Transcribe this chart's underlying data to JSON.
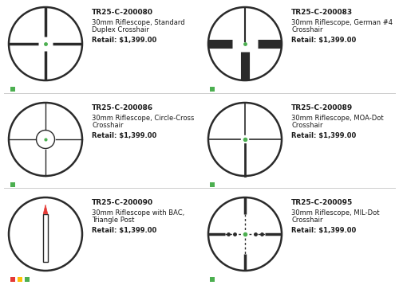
{
  "bg_color": "#ffffff",
  "text_color": "#1a1a1a",
  "scope_color": "#2a2a2a",
  "green_color": "#4CAF50",
  "red_color": "#e53935",
  "yellow_color": "#FFC107",
  "items": [
    {
      "id": "TR25-C-200080",
      "desc1": "30mm Riflescope, Standard",
      "desc2": "Duplex Crosshair",
      "price": "Retail: $1,399.00",
      "type": "duplex",
      "col": 0,
      "row": 0,
      "dots": [
        "green"
      ]
    },
    {
      "id": "TR25-C-200083",
      "desc1": "30mm Riflescope, German #4",
      "desc2": "Crosshair",
      "price": "Retail: $1,399.00",
      "type": "german4",
      "col": 1,
      "row": 0,
      "dots": [
        "green"
      ]
    },
    {
      "id": "TR25-C-200086",
      "desc1": "30mm Riflescope, Circle-Cross",
      "desc2": "Crosshair",
      "price": "Retail: $1,399.00",
      "type": "circlecross",
      "col": 0,
      "row": 1,
      "dots": [
        "green"
      ]
    },
    {
      "id": "TR25-C-200089",
      "desc1": "30mm Riflescope, MOA-Dot",
      "desc2": "Crosshair",
      "price": "Retail: $1,399.00",
      "type": "moadot",
      "col": 1,
      "row": 1,
      "dots": [
        "green"
      ]
    },
    {
      "id": "TR25-C-200090",
      "desc1": "30mm Riflescope with BAC,",
      "desc2": "Triangle Post",
      "price": "Retail: $1,399.00",
      "type": "trianglepost",
      "col": 0,
      "row": 2,
      "dots": [
        "red",
        "yellow",
        "green"
      ]
    },
    {
      "id": "TR25-C-200095",
      "desc1": "30mm Riflescope, MIL-Dot",
      "desc2": "Crosshair",
      "price": "Retail: $1,399.00",
      "type": "mildot",
      "col": 1,
      "row": 2,
      "dots": [
        "green"
      ]
    }
  ]
}
